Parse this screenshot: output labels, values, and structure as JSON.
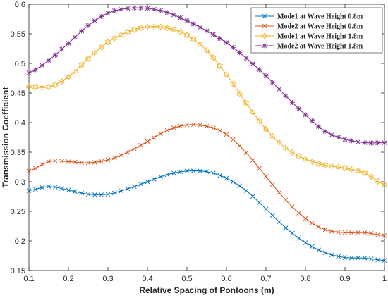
{
  "chart_data": {
    "type": "line",
    "title": "",
    "xlabel": "Relative Spacing of Pontoons (m)",
    "ylabel": "Transmission Coefficient",
    "xlim": [
      0.1,
      1.0
    ],
    "ylim": [
      0.15,
      0.6
    ],
    "xticks": [
      "0.1",
      "0.2",
      "0.3",
      "0.4",
      "0.5",
      "0.6",
      "0.7",
      "0.8",
      "0.9",
      "1"
    ],
    "yticks": [
      "0.15",
      "0.2",
      "0.25",
      "0.3",
      "0.35",
      "0.4",
      "0.45",
      "0.5",
      "0.55",
      "0.6"
    ],
    "grid": false,
    "legend_position": "top-right",
    "x": [
      0.1,
      0.15,
      0.2,
      0.25,
      0.3,
      0.35,
      0.4,
      0.45,
      0.5,
      0.55,
      0.6,
      0.65,
      0.7,
      0.75,
      0.8,
      0.85,
      0.9,
      0.95,
      1.0
    ],
    "series": [
      {
        "name": "Mode1 at Wave Height 0.8m",
        "color": "#0072BD",
        "marker": "x",
        "values": [
          0.285,
          0.292,
          0.286,
          0.279,
          0.279,
          0.288,
          0.3,
          0.312,
          0.318,
          0.317,
          0.306,
          0.285,
          0.254,
          0.222,
          0.197,
          0.18,
          0.172,
          0.171,
          0.167
        ]
      },
      {
        "name": "Mode2 at Wave Height 0.8m",
        "color": "#D95319",
        "marker": "x",
        "values": [
          0.318,
          0.334,
          0.334,
          0.332,
          0.337,
          0.35,
          0.368,
          0.387,
          0.396,
          0.394,
          0.38,
          0.349,
          0.309,
          0.269,
          0.238,
          0.219,
          0.214,
          0.214,
          0.209
        ]
      },
      {
        "name": "Mode1 at Wave Height 1.8m",
        "color": "#EDB120",
        "marker": "hexagram",
        "values": [
          0.461,
          0.46,
          0.477,
          0.508,
          0.536,
          0.553,
          0.562,
          0.56,
          0.548,
          0.522,
          0.481,
          0.433,
          0.389,
          0.357,
          0.338,
          0.328,
          0.323,
          0.315,
          0.295
        ]
      },
      {
        "name": "Mode2 at Wave Height 1.8m",
        "color": "#7E2F8E",
        "marker": "asterisk",
        "values": [
          0.484,
          0.505,
          0.534,
          0.564,
          0.585,
          0.593,
          0.593,
          0.586,
          0.572,
          0.555,
          0.535,
          0.509,
          0.479,
          0.445,
          0.413,
          0.385,
          0.372,
          0.366,
          0.366
        ]
      }
    ]
  }
}
